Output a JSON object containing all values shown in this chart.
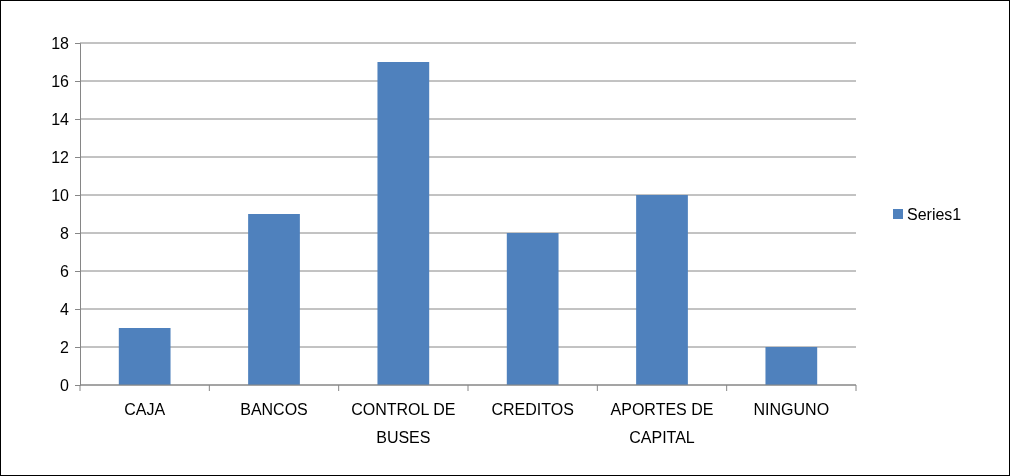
{
  "chart_data": {
    "type": "bar",
    "categories": [
      "CAJA",
      "BANCOS",
      "CONTROL DE BUSES",
      "CREDITOS",
      "APORTES DE CAPITAL",
      "NINGUNO"
    ],
    "series": [
      {
        "name": "Series1",
        "color": "#4f81bd",
        "values": [
          3,
          9,
          17,
          8,
          10,
          2
        ]
      }
    ],
    "ylim": [
      0,
      18
    ],
    "yticks": [
      0,
      2,
      4,
      6,
      8,
      10,
      12,
      14,
      16,
      18
    ],
    "grid": "y",
    "legend": "right"
  }
}
